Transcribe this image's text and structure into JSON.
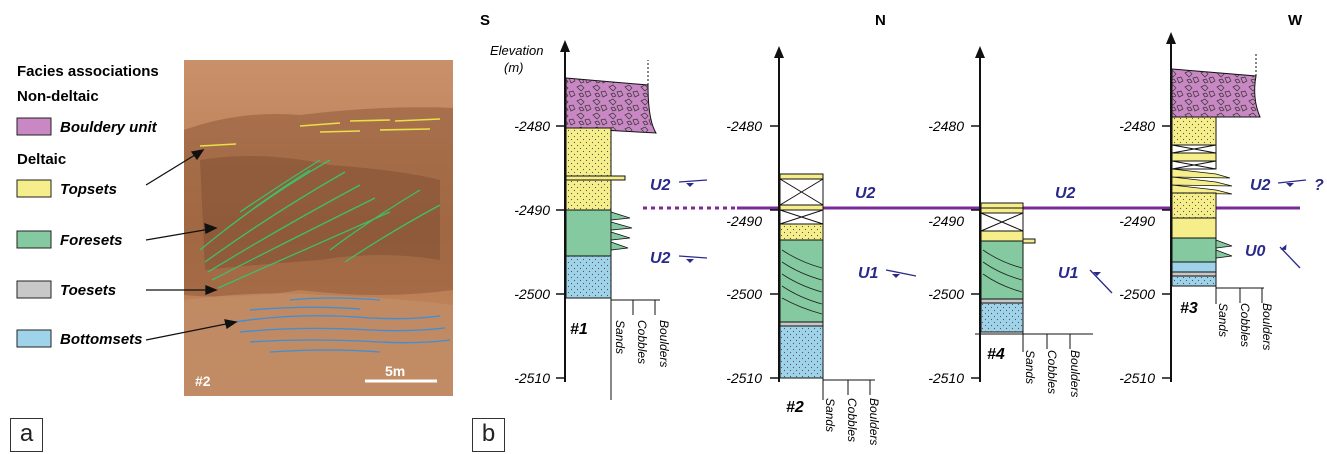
{
  "legend": {
    "title": "Facies associations",
    "nondeltaic_header": "Non-deltaic",
    "deltaic_header": "Deltaic",
    "items": [
      {
        "label": "Bouldery unit",
        "color": "#c987c4"
      },
      {
        "label": "Topsets",
        "color": "#f5ee8a"
      },
      {
        "label": "Foresets",
        "color": "#84c9a0"
      },
      {
        "label": "Toesets",
        "color": "#c8c8c8"
      },
      {
        "label": "Bottomsets",
        "color": "#9fd3ea"
      }
    ]
  },
  "photo": {
    "site_label": "#2",
    "scale_label": "5m"
  },
  "panels": {
    "a": "a",
    "b": "b"
  },
  "directions": {
    "left": "S",
    "middle": "N",
    "right": "W"
  },
  "axis": {
    "title": "Elevation",
    "unit": "(m)"
  },
  "columns": [
    {
      "id": "#1",
      "ticks": [
        "-2480",
        "-2490",
        "-2500",
        "-2510"
      ],
      "grain": [
        "Sands",
        "Cobbles",
        "Boulders"
      ]
    },
    {
      "id": "#2",
      "ticks": [
        "-2480",
        "-2490",
        "-2500",
        "-2510"
      ],
      "grain": [
        "Sands",
        "Cobbles",
        "Boulders"
      ]
    },
    {
      "id": "#4",
      "ticks": [
        "-2480",
        "-2490",
        "-2500",
        "-2510"
      ],
      "grain": [
        "Sands",
        "Cobbles",
        "Boulders"
      ]
    },
    {
      "id": "#3",
      "ticks": [
        "-2480",
        "-2490",
        "-2500",
        "-2510"
      ],
      "grain": [
        "Sands",
        "Cobbles",
        "Boulders"
      ]
    }
  ],
  "unit_labels": {
    "c1_top": "U2",
    "c1_bot": "U2",
    "c2_top": "U2",
    "c2_bot": "U1",
    "c4_top": "U2",
    "c4_bot": "U1",
    "c3_top": "U2",
    "c3_top_q": "?",
    "c3_bot": "U0"
  },
  "colors": {
    "correlation_line": "#7a2a9a",
    "unit_text": "#2a2a8c"
  }
}
